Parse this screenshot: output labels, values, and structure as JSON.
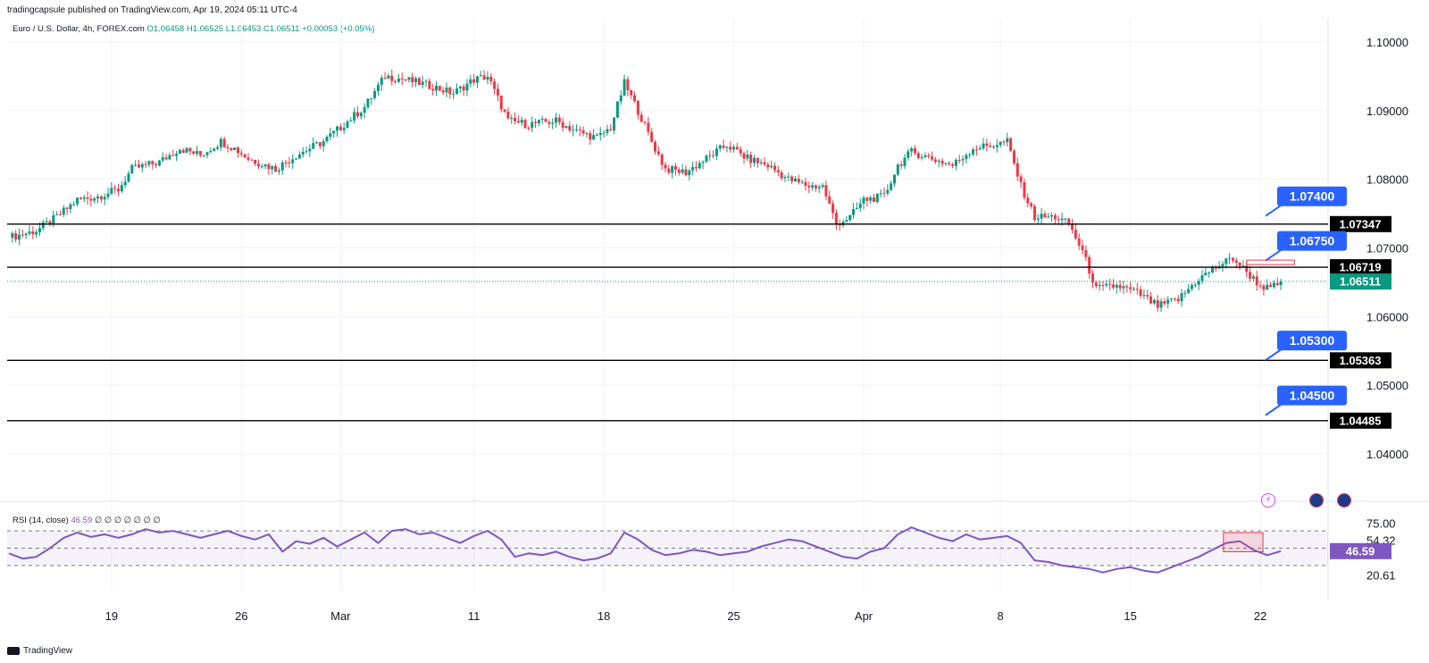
{
  "header": {
    "published": "tradingcapsule published on TradingView.com, Apr 19, 2024 05:11 UTC-4"
  },
  "ohlc": {
    "symbol": "Euro / U.S. Dollar, 4h, FOREX.com",
    "O": "O1.06458",
    "H": "H1.06525",
    "L": "L1.06453",
    "C": "C1.06511",
    "chg": "+0.00053 (+0.05%)"
  },
  "rsi": {
    "label": "RSI (14, close)",
    "value": "46.59",
    "placeholders": "∅ ∅ ∅ ∅ ∅ ∅ ∅"
  },
  "footer": {
    "brand": "TradingView"
  },
  "colors": {
    "up": "#089981",
    "down": "#f23645",
    "rsi": "#7e57c2",
    "callout": "#2962ff",
    "level": "#000000"
  },
  "icons": [
    "lightning-icon",
    "flag-icon",
    "flag-icon"
  ],
  "chart_data": [
    {
      "type": "candlestick",
      "title": "Euro / U.S. Dollar, 4h, FOREX.com",
      "x_tick_labels": [
        "19",
        "26",
        "Mar",
        "11",
        "18",
        "25",
        "Apr",
        "8",
        "15",
        "22"
      ],
      "y_tick_labels": [
        "1.10000",
        "1.09000",
        "1.08000",
        "1.07000",
        "1.06000",
        "1.05000",
        "1.04000"
      ],
      "ylim": [
        1.0335,
        1.1035
      ],
      "price_path": [
        [
          0,
          1.0715
        ],
        [
          8,
          1.0725
        ],
        [
          14,
          1.0745
        ],
        [
          20,
          1.077
        ],
        [
          26,
          1.0775
        ],
        [
          32,
          1.0785
        ],
        [
          36,
          1.0815
        ],
        [
          44,
          1.0825
        ],
        [
          50,
          1.0845
        ],
        [
          56,
          1.0835
        ],
        [
          62,
          1.0855
        ],
        [
          66,
          1.0845
        ],
        [
          70,
          1.083
        ],
        [
          78,
          1.0815
        ],
        [
          84,
          1.0835
        ],
        [
          92,
          1.0855
        ],
        [
          98,
          1.088
        ],
        [
          104,
          1.0905
        ],
        [
          110,
          1.095
        ],
        [
          116,
          1.0945
        ],
        [
          124,
          1.0935
        ],
        [
          130,
          1.0925
        ],
        [
          136,
          1.0945
        ],
        [
          140,
          1.095
        ],
        [
          146,
          1.0885
        ],
        [
          152,
          1.088
        ],
        [
          160,
          1.0885
        ],
        [
          166,
          1.087
        ],
        [
          172,
          1.086
        ],
        [
          176,
          1.0875
        ],
        [
          180,
          1.094
        ],
        [
          184,
          1.09
        ],
        [
          188,
          1.0855
        ],
        [
          192,
          1.0815
        ],
        [
          198,
          1.081
        ],
        [
          204,
          1.083
        ],
        [
          210,
          1.085
        ],
        [
          216,
          1.083
        ],
        [
          222,
          1.082
        ],
        [
          228,
          1.08
        ],
        [
          234,
          1.079
        ],
        [
          238,
          1.079
        ],
        [
          242,
          1.0735
        ],
        [
          246,
          1.0745
        ],
        [
          250,
          1.077
        ],
        [
          256,
          1.0775
        ],
        [
          260,
          1.082
        ],
        [
          264,
          1.084
        ],
        [
          270,
          1.083
        ],
        [
          276,
          1.082
        ],
        [
          282,
          1.0845
        ],
        [
          288,
          1.085
        ],
        [
          292,
          1.0855
        ],
        [
          296,
          1.079
        ],
        [
          300,
          1.0745
        ],
        [
          306,
          1.0745
        ],
        [
          310,
          1.0735
        ],
        [
          314,
          1.0695
        ],
        [
          318,
          1.064
        ],
        [
          324,
          1.0645
        ],
        [
          330,
          1.0635
        ],
        [
          336,
          1.0615
        ],
        [
          342,
          1.0625
        ],
        [
          348,
          1.0655
        ],
        [
          354,
          1.0675
        ],
        [
          358,
          1.0685
        ],
        [
          362,
          1.0665
        ],
        [
          366,
          1.0645
        ],
        [
          369,
          1.064
        ],
        [
          372,
          1.06511
        ]
      ],
      "last_price": "1.06511",
      "horizontal_levels": [
        "1.07347",
        "1.06719",
        "1.05363",
        "1.04485"
      ],
      "callouts": [
        "1.07400",
        "1.06750",
        "1.05300",
        "1.04500"
      ]
    },
    {
      "type": "line",
      "title": "RSI (14, close)",
      "y_tick_labels": [
        "75.00",
        "54.32",
        "46.59",
        "20.61"
      ],
      "bands": [
        30,
        70
      ],
      "rsi_path": [
        [
          0,
          44
        ],
        [
          4,
          38
        ],
        [
          8,
          40
        ],
        [
          12,
          50
        ],
        [
          16,
          62
        ],
        [
          20,
          68
        ],
        [
          24,
          63
        ],
        [
          28,
          66
        ],
        [
          32,
          62
        ],
        [
          36,
          66
        ],
        [
          40,
          72
        ],
        [
          44,
          68
        ],
        [
          48,
          70
        ],
        [
          52,
          66
        ],
        [
          56,
          62
        ],
        [
          60,
          66
        ],
        [
          64,
          70
        ],
        [
          68,
          64
        ],
        [
          72,
          60
        ],
        [
          76,
          66
        ],
        [
          80,
          46
        ],
        [
          84,
          58
        ],
        [
          88,
          55
        ],
        [
          92,
          62
        ],
        [
          96,
          52
        ],
        [
          100,
          60
        ],
        [
          104,
          68
        ],
        [
          108,
          56
        ],
        [
          112,
          70
        ],
        [
          116,
          72
        ],
        [
          120,
          66
        ],
        [
          124,
          68
        ],
        [
          128,
          62
        ],
        [
          132,
          56
        ],
        [
          136,
          64
        ],
        [
          140,
          70
        ],
        [
          144,
          60
        ],
        [
          148,
          40
        ],
        [
          152,
          44
        ],
        [
          156,
          42
        ],
        [
          160,
          46
        ],
        [
          164,
          40
        ],
        [
          168,
          36
        ],
        [
          172,
          38
        ],
        [
          176,
          44
        ],
        [
          180,
          68
        ],
        [
          184,
          60
        ],
        [
          188,
          48
        ],
        [
          192,
          42
        ],
        [
          196,
          44
        ],
        [
          200,
          48
        ],
        [
          204,
          46
        ],
        [
          208,
          42
        ],
        [
          212,
          44
        ],
        [
          216,
          46
        ],
        [
          220,
          52
        ],
        [
          224,
          56
        ],
        [
          228,
          60
        ],
        [
          232,
          58
        ],
        [
          236,
          52
        ],
        [
          240,
          46
        ],
        [
          244,
          40
        ],
        [
          248,
          38
        ],
        [
          252,
          46
        ],
        [
          256,
          50
        ],
        [
          260,
          66
        ],
        [
          264,
          74
        ],
        [
          268,
          68
        ],
        [
          272,
          62
        ],
        [
          276,
          58
        ],
        [
          280,
          66
        ],
        [
          284,
          60
        ],
        [
          288,
          62
        ],
        [
          292,
          64
        ],
        [
          296,
          56
        ],
        [
          300,
          36
        ],
        [
          304,
          34
        ],
        [
          308,
          30
        ],
        [
          312,
          28
        ],
        [
          316,
          26
        ],
        [
          320,
          22
        ],
        [
          324,
          26
        ],
        [
          328,
          28
        ],
        [
          332,
          24
        ],
        [
          336,
          22
        ],
        [
          340,
          28
        ],
        [
          344,
          34
        ],
        [
          348,
          40
        ],
        [
          352,
          48
        ],
        [
          356,
          56
        ],
        [
          360,
          58
        ],
        [
          364,
          48
        ],
        [
          368,
          42
        ],
        [
          372,
          46.59
        ]
      ],
      "last_value": "46.59",
      "highlight_box": [
        356,
        366
      ]
    }
  ]
}
